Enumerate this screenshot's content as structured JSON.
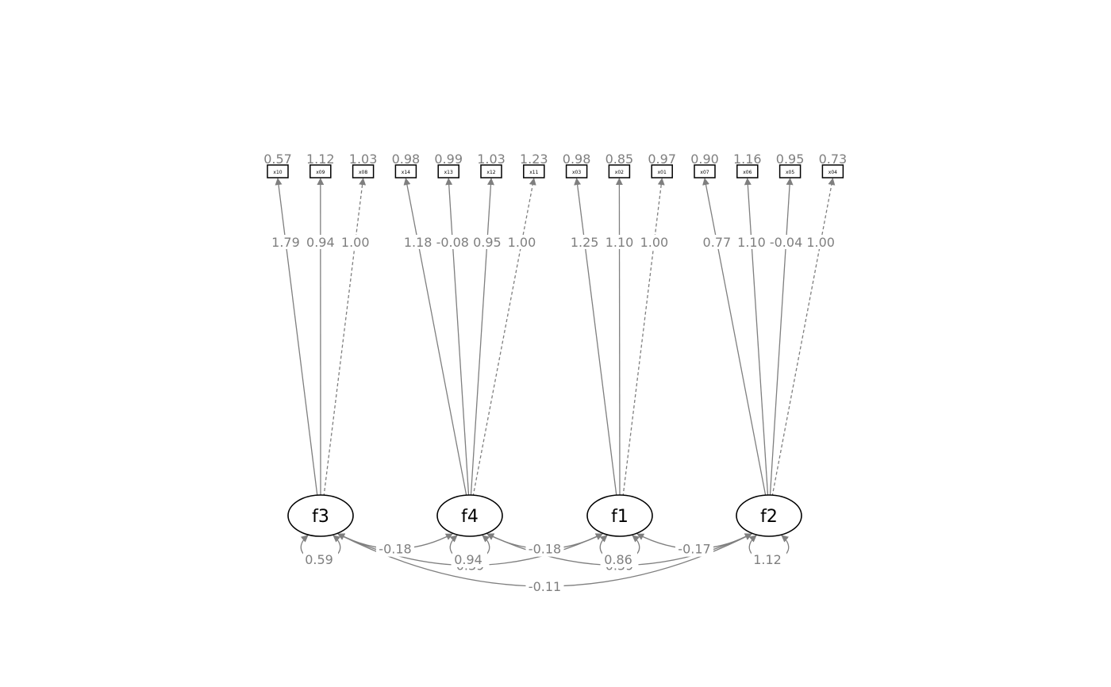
{
  "colors": {
    "edge": "#7f7f7f",
    "node_stroke": "#000000",
    "background": "#ffffff"
  },
  "indicators": [
    {
      "id": "x10",
      "variance": "0.57"
    },
    {
      "id": "x09",
      "variance": "1.12"
    },
    {
      "id": "x08",
      "variance": "1.03"
    },
    {
      "id": "x14",
      "variance": "0.98"
    },
    {
      "id": "x13",
      "variance": "0.99"
    },
    {
      "id": "x12",
      "variance": "1.03"
    },
    {
      "id": "x11",
      "variance": "1.23"
    },
    {
      "id": "x03",
      "variance": "0.98"
    },
    {
      "id": "x02",
      "variance": "0.85"
    },
    {
      "id": "x01",
      "variance": "0.97"
    },
    {
      "id": "x07",
      "variance": "0.90"
    },
    {
      "id": "x06",
      "variance": "1.16"
    },
    {
      "id": "x05",
      "variance": "0.95"
    },
    {
      "id": "x04",
      "variance": "0.73"
    }
  ],
  "factors": [
    {
      "id": "f3",
      "variance": "0.59"
    },
    {
      "id": "f4",
      "variance": "0.94"
    },
    {
      "id": "f1",
      "variance": "0.86"
    },
    {
      "id": "f2",
      "variance": "1.12"
    }
  ],
  "loadings": [
    {
      "factor": "f3",
      "indicator": "x10",
      "value": "1.79",
      "fixed": false
    },
    {
      "factor": "f3",
      "indicator": "x09",
      "value": "0.94",
      "fixed": false
    },
    {
      "factor": "f3",
      "indicator": "x08",
      "value": "1.00",
      "fixed": true
    },
    {
      "factor": "f4",
      "indicator": "x14",
      "value": "1.18",
      "fixed": false
    },
    {
      "factor": "f4",
      "indicator": "x13",
      "value": "-0.08",
      "fixed": false
    },
    {
      "factor": "f4",
      "indicator": "x12",
      "value": "0.95",
      "fixed": false
    },
    {
      "factor": "f4",
      "indicator": "x11",
      "value": "1.00",
      "fixed": true
    },
    {
      "factor": "f1",
      "indicator": "x03",
      "value": "1.25",
      "fixed": false
    },
    {
      "factor": "f1",
      "indicator": "x02",
      "value": "1.10",
      "fixed": false
    },
    {
      "factor": "f1",
      "indicator": "x01",
      "value": "1.00",
      "fixed": true
    },
    {
      "factor": "f2",
      "indicator": "x07",
      "value": "0.77",
      "fixed": false
    },
    {
      "factor": "f2",
      "indicator": "x06",
      "value": "1.10",
      "fixed": false
    },
    {
      "factor": "f2",
      "indicator": "x05",
      "value": "-0.04",
      "fixed": false
    },
    {
      "factor": "f2",
      "indicator": "x04",
      "value": "1.00",
      "fixed": true
    }
  ],
  "covariances": [
    {
      "from": "f3",
      "to": "f4",
      "value": "-0.18"
    },
    {
      "from": "f4",
      "to": "f1",
      "value": "-0.18"
    },
    {
      "from": "f1",
      "to": "f2",
      "value": "-0.17"
    },
    {
      "from": "f3",
      "to": "f1",
      "value": "0.39"
    },
    {
      "from": "f4",
      "to": "f2",
      "value": "0.59"
    },
    {
      "from": "f3",
      "to": "f2",
      "value": "-0.11"
    }
  ]
}
